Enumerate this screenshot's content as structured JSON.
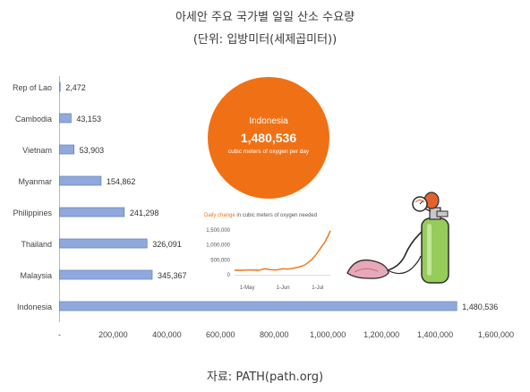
{
  "title": {
    "line1": "아세안 주요 국가별 일일 산소 수요량",
    "line2": "(단위: 입방미터(세제곱미터))"
  },
  "source": "자료: PATH(path.org)",
  "colors": {
    "bar_fill": "#8fa9dc",
    "bar_stroke": "#6a86c4",
    "accent": "#f07115",
    "axis_text": "#444444"
  },
  "chart_data": {
    "type": "bar",
    "orientation": "horizontal",
    "categories": [
      "Rep of Lao",
      "Cambodia",
      "Vietnam",
      "Myanmar",
      "Philippines",
      "Thailand",
      "Malaysia",
      "Indonesia"
    ],
    "values": [
      2472,
      43153,
      53903,
      154862,
      241298,
      326091,
      345367,
      1480536
    ],
    "value_labels": [
      "2,472",
      "43,153",
      "53,903",
      "154,862",
      "241,298",
      "326,091",
      "345,367",
      "1,480,536"
    ],
    "xlim": [
      0,
      1600000
    ],
    "x_ticks": [
      0,
      200000,
      400000,
      600000,
      800000,
      1000000,
      1200000,
      1400000,
      1600000
    ],
    "x_tick_labels": [
      "-",
      "200,000",
      "400,000",
      "600,000",
      "800,000",
      "1,000,000",
      "1,200,000",
      "1,400,000",
      "1,600,000"
    ],
    "grid": false,
    "highlight": {
      "country": "Indonesia",
      "value": "1,480,536",
      "unit": "cubic meters of oxygen per day"
    },
    "inset": {
      "type": "line",
      "title_highlight": "Daily change",
      "title_rest": " in cubic meters of oxygen needed",
      "y_ticks": [
        0,
        500000,
        1000000,
        1500000
      ],
      "y_tick_labels": [
        "0",
        "500,000",
        "1,000,000",
        "1,500,000"
      ],
      "ylim": [
        0,
        1500000
      ],
      "x_tick_labels": [
        "1-May",
        "1-Jun",
        "1-Jul"
      ],
      "x_tick_days": [
        0,
        31,
        61
      ],
      "xlim_days": [
        -11,
        72
      ],
      "days": [
        -11,
        -5,
        0,
        5,
        10,
        15,
        20,
        25,
        31,
        35,
        40,
        45,
        50,
        55,
        58,
        61,
        64,
        67,
        70,
        72
      ],
      "series": [
        {
          "values": [
            150000,
            150000,
            160000,
            160000,
            150000,
            200000,
            170000,
            160000,
            200000,
            190000,
            220000,
            260000,
            330000,
            480000,
            600000,
            750000,
            920000,
            1080000,
            1300000,
            1480000
          ]
        }
      ]
    }
  }
}
